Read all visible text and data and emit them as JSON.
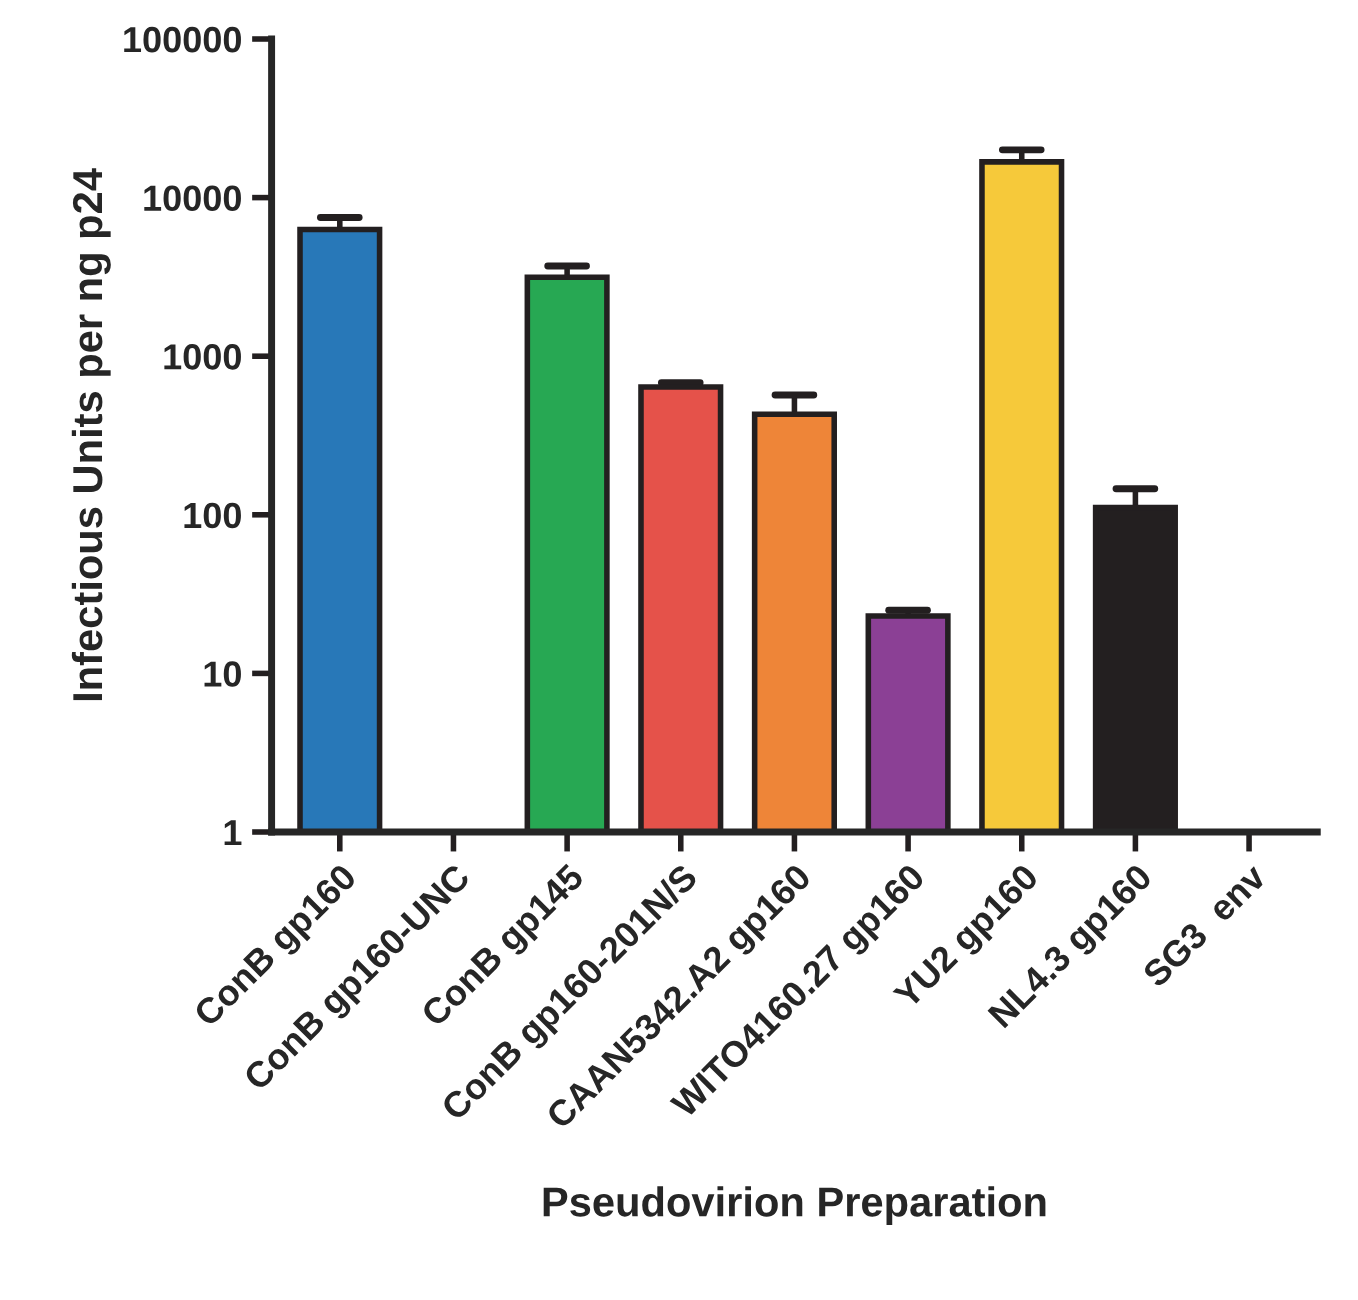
{
  "chart_data": {
    "type": "bar",
    "xlabel": "Pseudovirion Preparation",
    "ylabel": "Infectious Units per ng p24",
    "categories": [
      "ConB gp160",
      "ConB gp160-UNC",
      "ConB gp145",
      "ConB gp160-201N/S",
      "CAAN5342.A2 gp160",
      "WITO4160.27 gp160",
      "YU2 gp160",
      "NL4.3 gp160",
      "SG3  env"
    ],
    "values": [
      6300,
      null,
      3150,
      640,
      430,
      23,
      16800,
      111,
      null
    ],
    "errors": [
      [
        6300,
        7500
      ],
      null,
      [
        3150,
        3700
      ],
      [
        640,
        680
      ],
      [
        430,
        570
      ],
      [
        23,
        25
      ],
      [
        16800,
        20000
      ],
      [
        111,
        146
      ],
      null
    ],
    "colors": [
      "#2878b8",
      "#2878b8",
      "#27a853",
      "#e5524a",
      "#ee8538",
      "#8b4095",
      "#f6c93a",
      "#231f20",
      "#231f20"
    ],
    "log": true,
    "ylim": [
      1,
      100000
    ],
    "yticks": [
      1,
      10,
      100,
      1000,
      10000,
      100000
    ],
    "grid": false,
    "legend": false
  }
}
